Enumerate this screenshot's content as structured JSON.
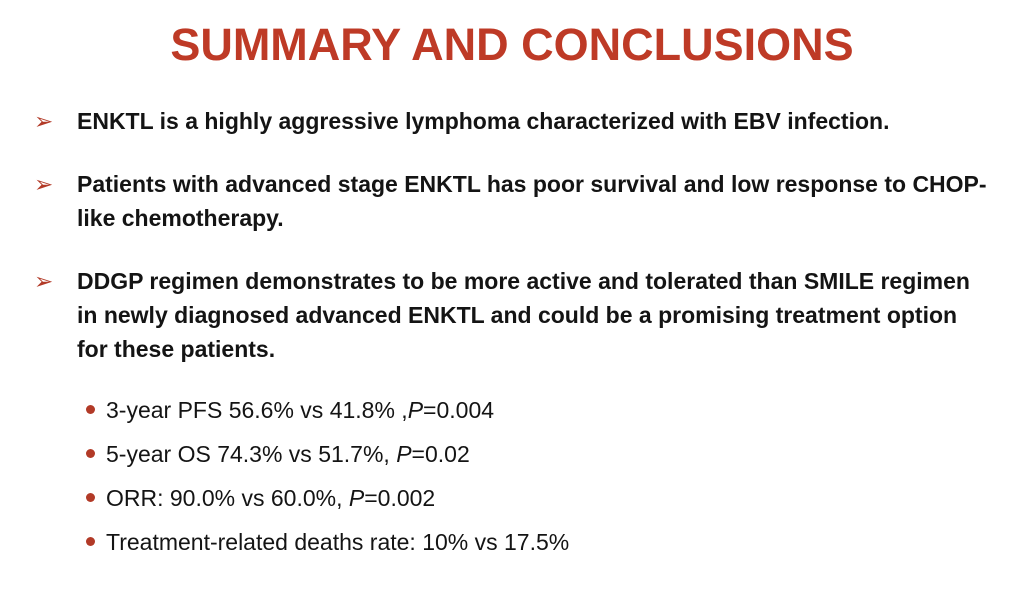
{
  "slide": {
    "title": "SUMMARY AND CONCLUSIONS",
    "bullets": [
      {
        "text": "ENKTL is a highly aggressive lymphoma characterized with EBV infection."
      },
      {
        "text": "Patients with advanced stage ENKTL has poor survival and low response to CHOP-like chemotherapy."
      },
      {
        "text": "DDGP regimen demonstrates to be more active and tolerated than SMILE regimen in newly diagnosed advanced ENKTL and could be a promising treatment option for these patients."
      }
    ],
    "sub_bullets": [
      {
        "pre": "3-year PFS 56.6% vs 41.8% ,",
        "italic": "P",
        "post": "=0.004"
      },
      {
        "pre": "5-year OS 74.3% vs 51.7%, ",
        "italic": "P",
        "post": "=0.02"
      },
      {
        "pre": "ORR: 90.0% vs 60.0%, ",
        "italic": "P",
        "post": "=0.002"
      },
      {
        "pre": "Treatment-related deaths rate: 10% vs 17.5%",
        "italic": "",
        "post": ""
      }
    ]
  },
  "icons": {
    "arrow_bullet": "➢",
    "dot_bullet": "css-circle"
  },
  "colors": {
    "title_red": "#BE3A26",
    "bullet_red": "#B23A27",
    "text_black": "#141414",
    "background": "#FFFFFF"
  }
}
